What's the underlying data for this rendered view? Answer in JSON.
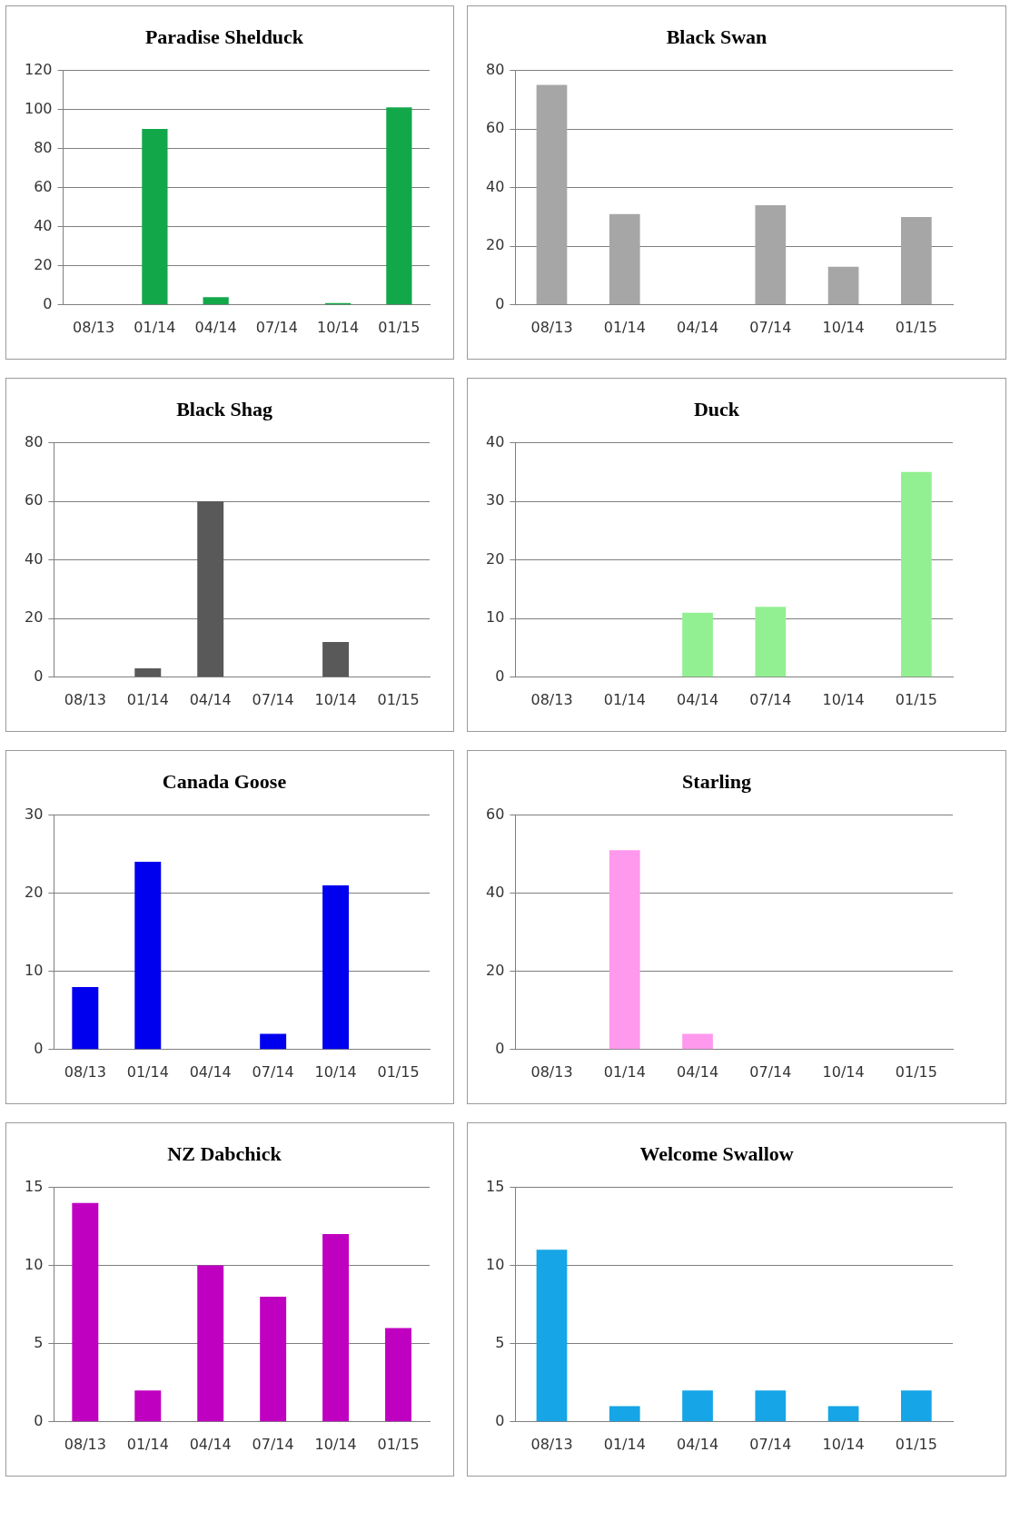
{
  "chart_data": [
    {
      "type": "bar",
      "title": "Paradise Shelduck",
      "categories": [
        "08/13",
        "01/14",
        "04/14",
        "07/14",
        "10/14",
        "01/15"
      ],
      "values": [
        null,
        90,
        4,
        null,
        1,
        101
      ],
      "color": "#12a84a",
      "ylim": [
        0,
        120
      ],
      "yticks": [
        0,
        20,
        40,
        60,
        80,
        100,
        120
      ],
      "grid": "y",
      "legend": false
    },
    {
      "type": "bar",
      "title": "Black Swan",
      "categories": [
        "08/13",
        "01/14",
        "04/14",
        "07/14",
        "10/14",
        "01/15"
      ],
      "values": [
        75,
        31,
        null,
        34,
        13,
        30
      ],
      "color": "#a6a6a6",
      "ylim": [
        0,
        80
      ],
      "yticks": [
        0,
        20,
        40,
        60,
        80
      ],
      "grid": "y",
      "legend": false
    },
    {
      "type": "bar",
      "title": "Black Shag",
      "categories": [
        "08/13",
        "01/14",
        "04/14",
        "07/14",
        "10/14",
        "01/15"
      ],
      "values": [
        null,
        3,
        60,
        null,
        12,
        null
      ],
      "color": "#595959",
      "ylim": [
        0,
        80
      ],
      "yticks": [
        0,
        20,
        40,
        60,
        80
      ],
      "grid": "y",
      "legend": false
    },
    {
      "type": "bar",
      "title": "Duck",
      "categories": [
        "08/13",
        "01/14",
        "04/14",
        "07/14",
        "10/14",
        "01/15"
      ],
      "values": [
        null,
        null,
        11,
        12,
        null,
        35
      ],
      "color": "#92f092",
      "ylim": [
        0,
        40
      ],
      "yticks": [
        0,
        10,
        20,
        30,
        40
      ],
      "grid": "y",
      "legend": false
    },
    {
      "type": "bar",
      "title": "Canada Goose",
      "categories": [
        "08/13",
        "01/14",
        "04/14",
        "07/14",
        "10/14",
        "01/15"
      ],
      "values": [
        8,
        24,
        null,
        2,
        21,
        null
      ],
      "color": "#0000ee",
      "ylim": [
        0,
        30
      ],
      "yticks": [
        0,
        10,
        20,
        30
      ],
      "grid": "y",
      "legend": false
    },
    {
      "type": "bar",
      "title": "Starling",
      "categories": [
        "08/13",
        "01/14",
        "04/14",
        "07/14",
        "10/14",
        "01/15"
      ],
      "values": [
        null,
        51,
        4,
        null,
        null,
        null
      ],
      "color": "#ff99ee",
      "ylim": [
        0,
        60
      ],
      "yticks": [
        0,
        20,
        40,
        60
      ],
      "grid": "y",
      "legend": false
    },
    {
      "type": "bar",
      "title": "NZ Dabchick",
      "categories": [
        "08/13",
        "01/14",
        "04/14",
        "07/14",
        "10/14",
        "01/15"
      ],
      "values": [
        14,
        2,
        10,
        8,
        12,
        6
      ],
      "color": "#c000c0",
      "ylim": [
        0,
        15
      ],
      "yticks": [
        0,
        5,
        10,
        15
      ],
      "grid": "y",
      "legend": false
    },
    {
      "type": "bar",
      "title": "Welcome Swallow",
      "categories": [
        "08/13",
        "01/14",
        "04/14",
        "07/14",
        "10/14",
        "01/15"
      ],
      "values": [
        11,
        1,
        2,
        2,
        1,
        2
      ],
      "color": "#16a5e6",
      "ylim": [
        0,
        15
      ],
      "yticks": [
        0,
        5,
        10,
        15
      ],
      "grid": "y",
      "legend": false
    }
  ]
}
